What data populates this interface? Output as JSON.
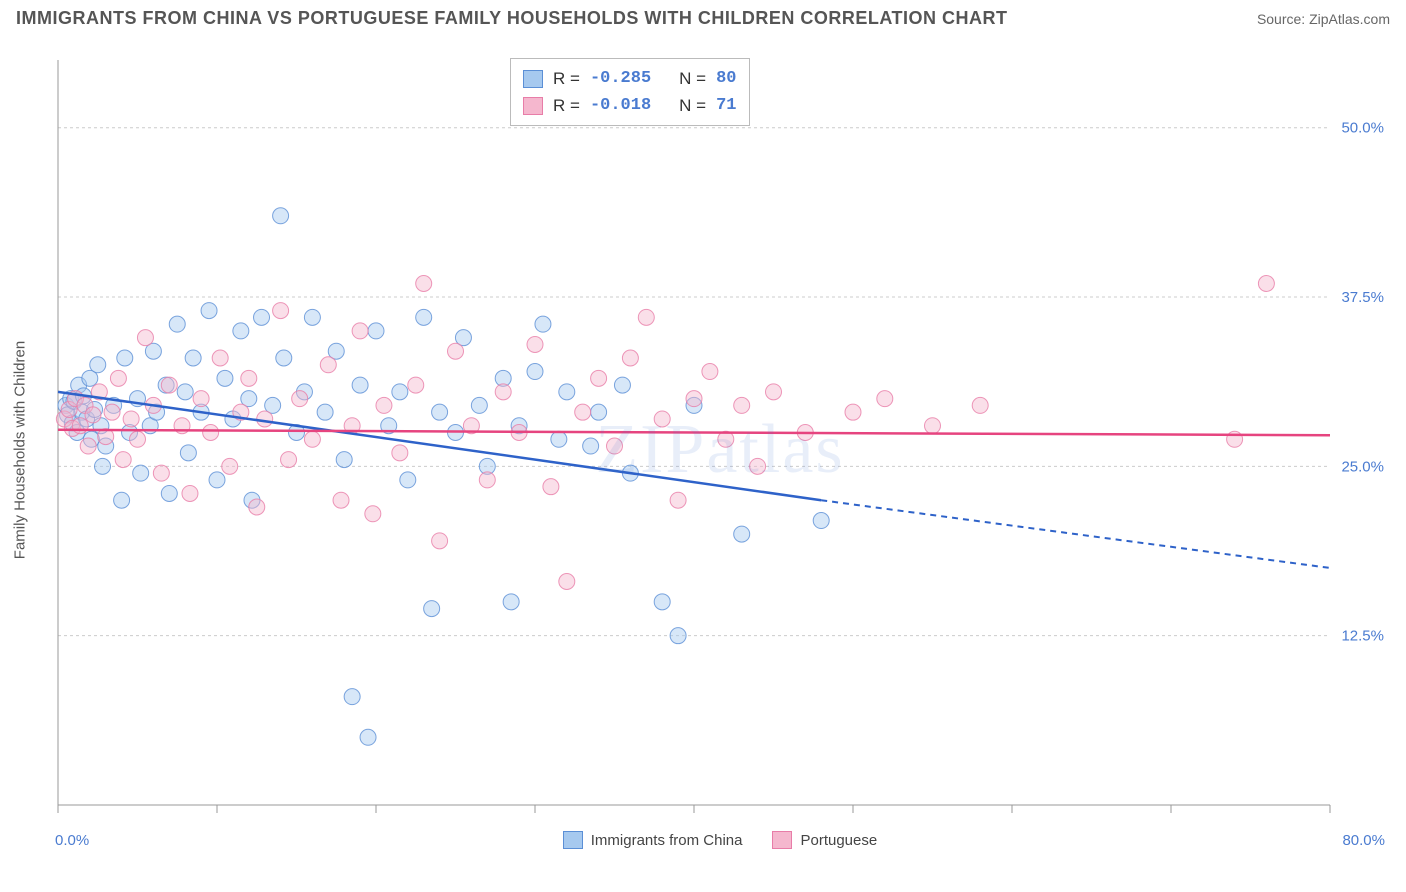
{
  "title": "IMMIGRANTS FROM CHINA VS PORTUGUESE FAMILY HOUSEHOLDS WITH CHILDREN CORRELATION CHART",
  "source": "Source: ZipAtlas.com",
  "watermark": "ZIPatlas",
  "y_axis_label": "Family Households with Children",
  "chart": {
    "type": "scatter",
    "xlim": [
      0,
      80
    ],
    "ylim": [
      0,
      55
    ],
    "x_ticks": [
      0,
      10,
      20,
      30,
      40,
      50,
      60,
      70,
      80
    ],
    "x_tick_labels_visible": {
      "0": "0.0%",
      "80": "80.0%"
    },
    "y_ticks": [
      12.5,
      25.0,
      37.5,
      50.0
    ],
    "y_tick_format": "{v}%",
    "grid_color": "#cccccc",
    "axis_color": "#999999",
    "background": "#ffffff",
    "marker_radius": 8,
    "series": [
      {
        "name": "Immigrants from China",
        "color_fill": "#a6c9ef",
        "color_stroke": "#5b8fd6",
        "R": "-0.285",
        "N": "80",
        "trend": {
          "x1": 0,
          "y1": 30.5,
          "x2_solid": 48,
          "y2_solid": 22.5,
          "x2": 80,
          "y2": 17.5,
          "color": "#2e62c9"
        },
        "points": [
          [
            0.5,
            29.5
          ],
          [
            0.6,
            28.8
          ],
          [
            0.8,
            30.0
          ],
          [
            0.9,
            28.2
          ],
          [
            1.0,
            29.8
          ],
          [
            1.2,
            27.5
          ],
          [
            1.3,
            31.0
          ],
          [
            1.5,
            29.0
          ],
          [
            1.6,
            30.2
          ],
          [
            1.8,
            28.5
          ],
          [
            2.0,
            31.5
          ],
          [
            2.1,
            27.0
          ],
          [
            2.3,
            29.2
          ],
          [
            2.5,
            32.5
          ],
          [
            2.7,
            28.0
          ],
          [
            2.8,
            25.0
          ],
          [
            3.0,
            26.5
          ],
          [
            3.5,
            29.5
          ],
          [
            4.0,
            22.5
          ],
          [
            4.2,
            33.0
          ],
          [
            4.5,
            27.5
          ],
          [
            5.0,
            30.0
          ],
          [
            5.2,
            24.5
          ],
          [
            5.8,
            28.0
          ],
          [
            6.0,
            33.5
          ],
          [
            6.2,
            29.0
          ],
          [
            6.8,
            31.0
          ],
          [
            7.0,
            23.0
          ],
          [
            7.5,
            35.5
          ],
          [
            8.0,
            30.5
          ],
          [
            8.2,
            26.0
          ],
          [
            8.5,
            33.0
          ],
          [
            9.0,
            29.0
          ],
          [
            9.5,
            36.5
          ],
          [
            10.0,
            24.0
          ],
          [
            10.5,
            31.5
          ],
          [
            11.0,
            28.5
          ],
          [
            11.5,
            35.0
          ],
          [
            12.0,
            30.0
          ],
          [
            12.2,
            22.5
          ],
          [
            12.8,
            36.0
          ],
          [
            13.5,
            29.5
          ],
          [
            14.0,
            43.5
          ],
          [
            14.2,
            33.0
          ],
          [
            15.0,
            27.5
          ],
          [
            15.5,
            30.5
          ],
          [
            16.0,
            36.0
          ],
          [
            16.8,
            29.0
          ],
          [
            17.5,
            33.5
          ],
          [
            18.0,
            25.5
          ],
          [
            18.5,
            8.0
          ],
          [
            19.0,
            31.0
          ],
          [
            19.5,
            5.0
          ],
          [
            20.0,
            35.0
          ],
          [
            20.8,
            28.0
          ],
          [
            21.5,
            30.5
          ],
          [
            22.0,
            24.0
          ],
          [
            23.0,
            36.0
          ],
          [
            23.5,
            14.5
          ],
          [
            24.0,
            29.0
          ],
          [
            25.0,
            27.5
          ],
          [
            25.5,
            34.5
          ],
          [
            26.5,
            29.5
          ],
          [
            27.0,
            25.0
          ],
          [
            28.0,
            31.5
          ],
          [
            28.5,
            15.0
          ],
          [
            29.0,
            28.0
          ],
          [
            30.0,
            32.0
          ],
          [
            30.5,
            35.5
          ],
          [
            31.5,
            27.0
          ],
          [
            32.0,
            30.5
          ],
          [
            33.5,
            26.5
          ],
          [
            34.0,
            29.0
          ],
          [
            35.5,
            31.0
          ],
          [
            36.0,
            24.5
          ],
          [
            38.0,
            15.0
          ],
          [
            39.0,
            12.5
          ],
          [
            40.0,
            29.5
          ],
          [
            43.0,
            20.0
          ],
          [
            48.0,
            21.0
          ]
        ]
      },
      {
        "name": "Portuguese",
        "color_fill": "#f5b7ce",
        "color_stroke": "#e87da8",
        "R": "-0.018",
        "N": "71",
        "trend": {
          "x1": 0,
          "y1": 27.7,
          "x2_solid": 80,
          "y2_solid": 27.3,
          "x2": 80,
          "y2": 27.3,
          "color": "#e6447f"
        },
        "points": [
          [
            0.4,
            28.5
          ],
          [
            0.7,
            29.2
          ],
          [
            0.9,
            27.8
          ],
          [
            1.1,
            30.0
          ],
          [
            1.4,
            28.0
          ],
          [
            1.7,
            29.5
          ],
          [
            1.9,
            26.5
          ],
          [
            2.2,
            28.8
          ],
          [
            2.6,
            30.5
          ],
          [
            3.0,
            27.2
          ],
          [
            3.4,
            29.0
          ],
          [
            3.8,
            31.5
          ],
          [
            4.1,
            25.5
          ],
          [
            4.6,
            28.5
          ],
          [
            5.0,
            27.0
          ],
          [
            5.5,
            34.5
          ],
          [
            6.0,
            29.5
          ],
          [
            6.5,
            24.5
          ],
          [
            7.0,
            31.0
          ],
          [
            7.8,
            28.0
          ],
          [
            8.3,
            23.0
          ],
          [
            9.0,
            30.0
          ],
          [
            9.6,
            27.5
          ],
          [
            10.2,
            33.0
          ],
          [
            10.8,
            25.0
          ],
          [
            11.5,
            29.0
          ],
          [
            12.0,
            31.5
          ],
          [
            12.5,
            22.0
          ],
          [
            13.0,
            28.5
          ],
          [
            14.0,
            36.5
          ],
          [
            14.5,
            25.5
          ],
          [
            15.2,
            30.0
          ],
          [
            16.0,
            27.0
          ],
          [
            17.0,
            32.5
          ],
          [
            17.8,
            22.5
          ],
          [
            18.5,
            28.0
          ],
          [
            19.0,
            35.0
          ],
          [
            19.8,
            21.5
          ],
          [
            20.5,
            29.5
          ],
          [
            21.5,
            26.0
          ],
          [
            22.5,
            31.0
          ],
          [
            23.0,
            38.5
          ],
          [
            24.0,
            19.5
          ],
          [
            25.0,
            33.5
          ],
          [
            26.0,
            28.0
          ],
          [
            27.0,
            24.0
          ],
          [
            28.0,
            30.5
          ],
          [
            29.0,
            27.5
          ],
          [
            30.0,
            34.0
          ],
          [
            31.0,
            23.5
          ],
          [
            32.0,
            16.5
          ],
          [
            33.0,
            29.0
          ],
          [
            34.0,
            31.5
          ],
          [
            35.0,
            26.5
          ],
          [
            36.0,
            33.0
          ],
          [
            37.0,
            36.0
          ],
          [
            38.0,
            28.5
          ],
          [
            39.0,
            22.5
          ],
          [
            40.0,
            30.0
          ],
          [
            41.0,
            32.0
          ],
          [
            42.0,
            27.0
          ],
          [
            43.0,
            29.5
          ],
          [
            44.0,
            25.0
          ],
          [
            45.0,
            30.5
          ],
          [
            47.0,
            27.5
          ],
          [
            50.0,
            29.0
          ],
          [
            52.0,
            30.0
          ],
          [
            55.0,
            28.0
          ],
          [
            58.0,
            29.5
          ],
          [
            74.0,
            27.0
          ],
          [
            76.0,
            38.5
          ]
        ]
      }
    ]
  },
  "legend": {
    "series1": "Immigrants from China",
    "series2": "Portuguese"
  },
  "stats_labels": {
    "R": "R =",
    "N": "N ="
  }
}
